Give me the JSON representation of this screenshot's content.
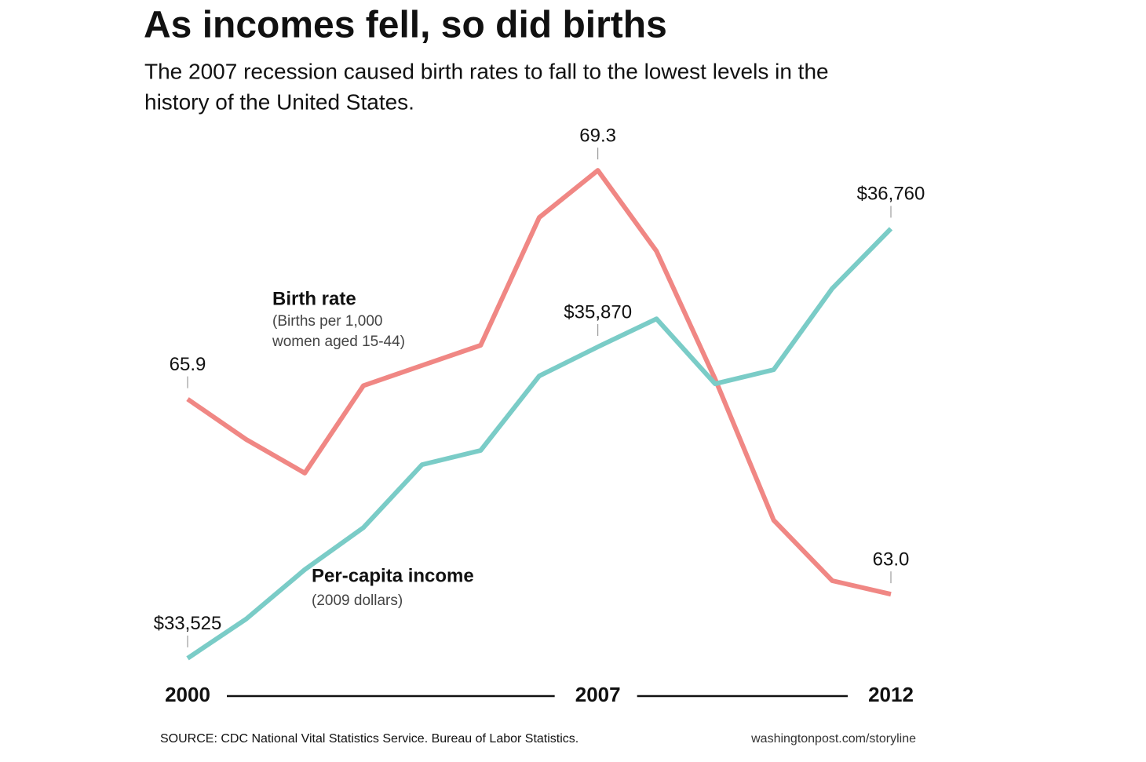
{
  "chart_data": {
    "type": "line",
    "title": "As incomes fell, so did births",
    "subtitle": [
      "The 2007 recession caused birth rates to fall to the lowest levels in the",
      "history of the United States."
    ],
    "x": [
      2000,
      2001,
      2002,
      2003,
      2004,
      2005,
      2006,
      2007,
      2008,
      2009,
      2010,
      2011,
      2012
    ],
    "xlim": [
      2000,
      2012
    ],
    "xticks": [
      2000,
      2007,
      2012
    ],
    "ylim": [
      61.8,
      69.5
    ],
    "y2lim": [
      33400,
      37300
    ],
    "series": [
      {
        "name": "Birth rate",
        "note": [
          "(Births per 1,000",
          "women aged 15-44)"
        ],
        "color": "#f08784",
        "values": [
          65.9,
          65.3,
          64.8,
          66.1,
          66.4,
          66.7,
          68.6,
          69.3,
          68.1,
          66.2,
          64.1,
          63.2,
          63.0
        ],
        "value_labels": [
          "65.9",
          null,
          null,
          null,
          null,
          null,
          null,
          "69.3",
          null,
          null,
          null,
          null,
          "63.0"
        ]
      },
      {
        "name": "Per-capita income",
        "note": [
          "(2009 dollars)"
        ],
        "color": "#7accc7",
        "axis": "y2",
        "values": [
          33525,
          33821,
          34193,
          34509,
          34983,
          35090,
          35651,
          35870,
          36081,
          35592,
          35698,
          36310,
          36760
        ],
        "value_labels": [
          "$33,525",
          null,
          null,
          null,
          null,
          null,
          null,
          "$35,870",
          null,
          null,
          null,
          null,
          "$36,760"
        ]
      }
    ],
    "source": "SOURCE: CDC National Vital Statistics Service. Bureau of Labor Statistics.",
    "credit": "washingtonpost.com/storyline"
  }
}
